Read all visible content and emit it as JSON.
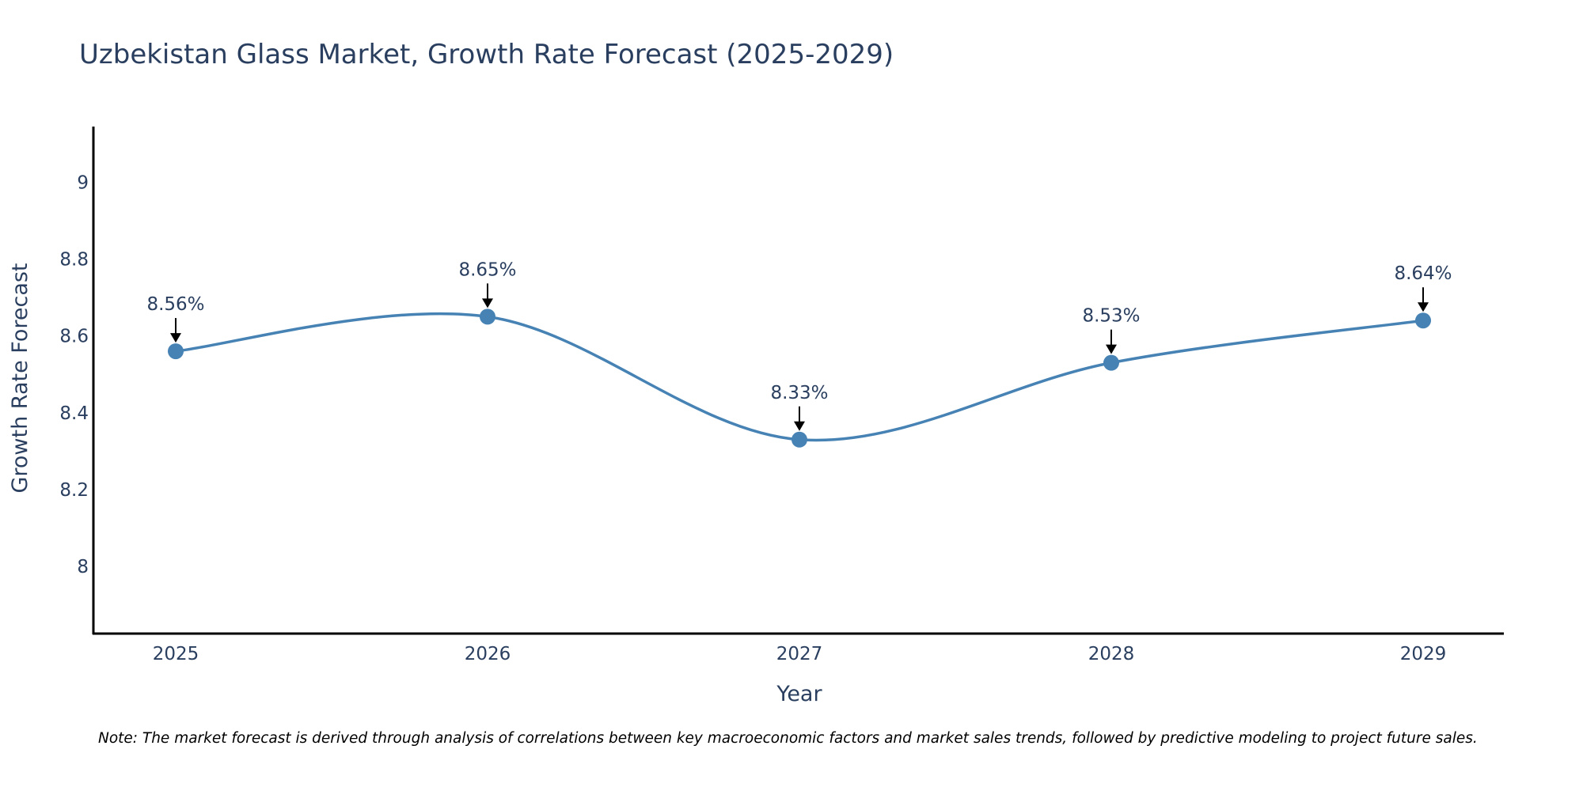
{
  "chart_data": {
    "type": "line",
    "title": "Uzbekistan Glass Market, Growth Rate Forecast (2025-2029)",
    "xlabel": "Year",
    "ylabel": "Growth Rate Forecast",
    "categories": [
      "2025",
      "2026",
      "2027",
      "2028",
      "2029"
    ],
    "values": [
      8.56,
      8.65,
      8.33,
      8.53,
      8.64
    ],
    "data_labels": [
      "8.56%",
      "8.65%",
      "8.33%",
      "8.53%",
      "8.64%"
    ],
    "y_ticks": [
      8,
      8.2,
      8.4,
      8.6,
      8.8,
      9
    ],
    "y_tick_labels": [
      "8",
      "8.2",
      "8.4",
      "8.6",
      "8.8",
      "9"
    ],
    "ylim": [
      7.825,
      9.145
    ],
    "grid": false,
    "line_shape": "spline",
    "colors": {
      "line": "#4682b4",
      "marker": "#4682b4",
      "arrow": "#000000",
      "axis": "#000000"
    },
    "note": "Note: The market forecast is derived through analysis of correlations between key macroeconomic factors and market sales trends, followed by predictive modeling to project future sales."
  }
}
